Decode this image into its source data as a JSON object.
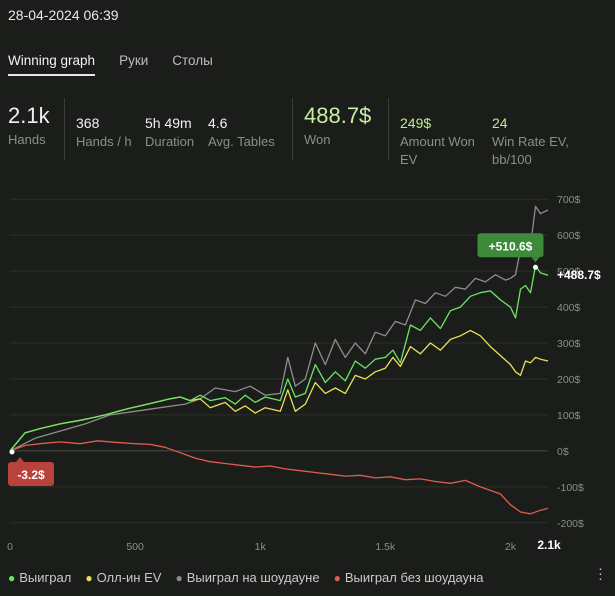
{
  "header": {
    "datetime": "28-04-2024 06:39"
  },
  "tabs": [
    {
      "label": "Winning graph",
      "active": true
    },
    {
      "label": "Руки"
    },
    {
      "label": "Столы"
    }
  ],
  "stats": {
    "hands": {
      "value": "2.1k",
      "label": "Hands"
    },
    "hands_per_h": {
      "value": "368",
      "label": "Hands / h"
    },
    "duration": {
      "value": "5h 49m",
      "label": "Duration"
    },
    "avg_tables": {
      "value": "4.6",
      "label": "Avg. Tables"
    },
    "won": {
      "value": "488.7$",
      "label": "Won"
    },
    "amount_won_ev": {
      "value": "249$",
      "label_line1": "Amount Won",
      "label_line2": "EV"
    },
    "win_rate_ev": {
      "value": "24",
      "label_line1": "Win Rate EV,",
      "label_line2": "bb/100"
    }
  },
  "chart_data": {
    "type": "line",
    "xlim": [
      0,
      2150
    ],
    "ylim": [
      -220,
      720
    ],
    "x_ticks": [
      {
        "value": 0,
        "label": "0"
      },
      {
        "value": 500,
        "label": "500"
      },
      {
        "value": 1000,
        "label": "1k"
      },
      {
        "value": 1500,
        "label": "1.5k"
      },
      {
        "value": 2000,
        "label": "2k"
      }
    ],
    "x_end_label": "2.1k",
    "y_ticks": [
      {
        "value": 700,
        "label": "700$"
      },
      {
        "value": 600,
        "label": "600$"
      },
      {
        "value": 500,
        "label": "500$"
      },
      {
        "value": 400,
        "label": "400$"
      },
      {
        "value": 300,
        "label": "300$"
      },
      {
        "value": 200,
        "label": "200$"
      },
      {
        "value": 100,
        "label": "100$"
      },
      {
        "value": 0,
        "label": "0$"
      },
      {
        "value": -100,
        "label": "-100$"
      },
      {
        "value": -200,
        "label": "-200$"
      }
    ],
    "legend_position": "bottom",
    "annotations": {
      "final_label": "+488.7$",
      "peak_label": "+510.6$",
      "peak_point": [
        2100,
        510.6
      ],
      "min_label": "-3.2$",
      "min_point": [
        0,
        -3.2
      ]
    },
    "series": [
      {
        "name": "Выиграл",
        "color": "#6ee467",
        "x": [
          0,
          60,
          120,
          200,
          280,
          330,
          380,
          420,
          470,
          520,
          580,
          640,
          680,
          720,
          760,
          800,
          860,
          900,
          940,
          980,
          1020,
          1080,
          1110,
          1140,
          1180,
          1220,
          1260,
          1300,
          1340,
          1380,
          1420,
          1460,
          1500,
          1530,
          1560,
          1600,
          1640,
          1680,
          1720,
          1760,
          1800,
          1840,
          1880,
          1920,
          1960,
          2000,
          2020,
          2040,
          2060,
          2080,
          2100,
          2120,
          2150
        ],
        "y": [
          0,
          50,
          62,
          75,
          85,
          92,
          100,
          108,
          117,
          125,
          135,
          145,
          150,
          140,
          155,
          140,
          148,
          130,
          155,
          135,
          150,
          140,
          200,
          150,
          160,
          240,
          190,
          220,
          195,
          250,
          230,
          255,
          260,
          280,
          245,
          350,
          335,
          370,
          340,
          390,
          400,
          430,
          440,
          445,
          420,
          400,
          370,
          450,
          460,
          440,
          515,
          495,
          488.7
        ]
      },
      {
        "name": "Олл-ин EV",
        "color": "#e9e05a",
        "x": [
          0,
          60,
          120,
          200,
          280,
          330,
          380,
          420,
          470,
          520,
          580,
          640,
          680,
          720,
          760,
          800,
          860,
          900,
          940,
          980,
          1020,
          1080,
          1110,
          1140,
          1180,
          1220,
          1260,
          1300,
          1340,
          1380,
          1420,
          1460,
          1500,
          1530,
          1560,
          1600,
          1640,
          1680,
          1720,
          1760,
          1800,
          1840,
          1880,
          1920,
          1960,
          2000,
          2020,
          2040,
          2060,
          2080,
          2100,
          2120,
          2150
        ],
        "y": [
          0,
          50,
          62,
          75,
          85,
          92,
          100,
          108,
          117,
          125,
          135,
          145,
          150,
          140,
          145,
          120,
          135,
          110,
          125,
          105,
          120,
          110,
          170,
          110,
          130,
          190,
          160,
          175,
          160,
          210,
          200,
          220,
          230,
          260,
          235,
          290,
          270,
          300,
          280,
          310,
          320,
          335,
          320,
          290,
          265,
          240,
          220,
          210,
          250,
          245,
          260,
          255,
          250
        ]
      },
      {
        "name": "Выиграл на шоудауне",
        "color": "#8d8d8d",
        "x": [
          0,
          100,
          200,
          300,
          400,
          500,
          600,
          700,
          760,
          820,
          900,
          960,
          1020,
          1080,
          1110,
          1140,
          1180,
          1220,
          1260,
          1300,
          1340,
          1380,
          1420,
          1460,
          1500,
          1540,
          1580,
          1620,
          1660,
          1700,
          1740,
          1780,
          1820,
          1860,
          1900,
          1940,
          1980,
          2000,
          2020,
          2040,
          2060,
          2080,
          2100,
          2120,
          2150
        ],
        "y": [
          0,
          35,
          55,
          75,
          100,
          110,
          120,
          130,
          145,
          175,
          165,
          180,
          155,
          160,
          260,
          180,
          200,
          300,
          240,
          310,
          260,
          300,
          270,
          330,
          320,
          360,
          350,
          420,
          410,
          440,
          430,
          455,
          450,
          480,
          470,
          490,
          475,
          480,
          490,
          560,
          560,
          570,
          680,
          660,
          670
        ]
      },
      {
        "name": "Выиграл без шоудауна",
        "color": "#e25a52",
        "x": [
          0,
          60,
          120,
          200,
          280,
          350,
          420,
          500,
          560,
          620,
          680,
          740,
          800,
          860,
          920,
          980,
          1040,
          1100,
          1160,
          1220,
          1280,
          1340,
          1400,
          1460,
          1520,
          1580,
          1640,
          1700,
          1760,
          1820,
          1880,
          1920,
          1960,
          2000,
          2040,
          2080,
          2120,
          2150
        ],
        "y": [
          0,
          15,
          20,
          25,
          20,
          28,
          24,
          20,
          18,
          10,
          -5,
          -20,
          -30,
          -35,
          -40,
          -45,
          -42,
          -50,
          -55,
          -60,
          -65,
          -70,
          -68,
          -75,
          -72,
          -80,
          -78,
          -85,
          -90,
          -82,
          -100,
          -110,
          -120,
          -150,
          -170,
          -175,
          -165,
          -160
        ]
      }
    ]
  },
  "legend_items": [
    {
      "label": "Выиграл",
      "color": "#6ee467"
    },
    {
      "label": "Олл-ин EV",
      "color": "#e9e05a"
    },
    {
      "label": "Выиграл на шоудауне",
      "color": "#8d8d8d"
    },
    {
      "label": "Выиграл без шоудауна",
      "color": "#e25a52"
    }
  ]
}
